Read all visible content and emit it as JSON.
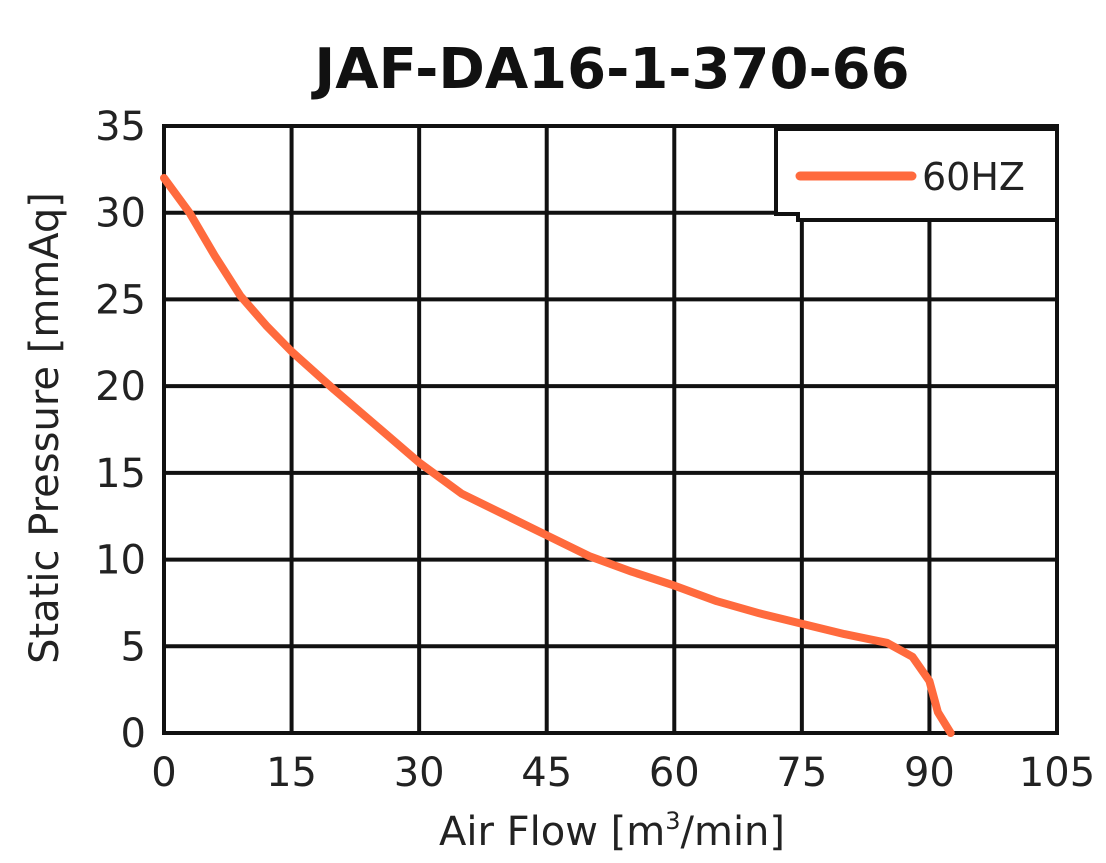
{
  "chart_data": {
    "type": "line",
    "title": "JAF-DA16-1-370-66",
    "xlabel_prefix": "Air Flow [m",
    "xlabel_sup": "3",
    "xlabel_suffix": "/min]",
    "ylabel": "Static Pressure [mmAq]",
    "xlim": [
      0,
      105
    ],
    "ylim": [
      0,
      35
    ],
    "xticks": [
      0,
      15,
      30,
      45,
      60,
      75,
      90,
      105
    ],
    "yticks": [
      0,
      5,
      10,
      15,
      20,
      25,
      30,
      35
    ],
    "grid": true,
    "legend_position": "top-right",
    "series": [
      {
        "name": "60HZ",
        "color": "#ff6a3d",
        "x": [
          0,
          3,
          6,
          9,
          12,
          15,
          20,
          25,
          30,
          35,
          40,
          45,
          50,
          55,
          60,
          65,
          70,
          75,
          80,
          85,
          88,
          90,
          91,
          92.5
        ],
        "y": [
          32,
          30,
          27.5,
          25.2,
          23.5,
          22,
          19.8,
          17.7,
          15.6,
          13.8,
          12.6,
          11.4,
          10.2,
          9.3,
          8.5,
          7.6,
          6.9,
          6.3,
          5.7,
          5.2,
          4.4,
          3,
          1.2,
          0
        ]
      }
    ]
  }
}
